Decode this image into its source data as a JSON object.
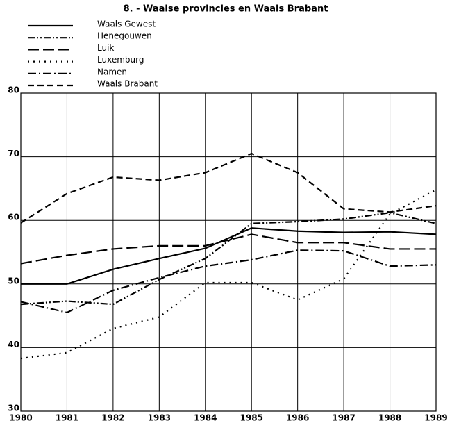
{
  "chart_data": {
    "type": "line",
    "title": "8. - Waalse provincies en Waals Brabant",
    "x": [
      1980,
      1981,
      1982,
      1983,
      1984,
      1985,
      1986,
      1987,
      1988,
      1989
    ],
    "xlim": [
      1980,
      1989
    ],
    "xticks": [
      1980,
      1981,
      1982,
      1983,
      1984,
      1985,
      1986,
      1987,
      1988,
      1989
    ],
    "ylim": [
      30,
      80
    ],
    "yticks": [
      30,
      40,
      50,
      60,
      70,
      80
    ],
    "grid": true,
    "legend": "top-left",
    "series": [
      {
        "name": "Waals Gewest",
        "color": "#000000",
        "style": "solid",
        "values": [
          50,
          50,
          52.3,
          54,
          55.6,
          58.8,
          58.3,
          58.1,
          58.2,
          57.8
        ]
      },
      {
        "name": "Henegouwen",
        "color": "#000000",
        "style": "dash-dot-dot",
        "values": [
          46.8,
          47.3,
          46.8,
          50.7,
          54,
          59.5,
          59.8,
          60.2,
          61.2,
          59.5
        ]
      },
      {
        "name": "Luik",
        "color": "#000000",
        "style": "long-dash",
        "values": [
          53.2,
          54.5,
          55.5,
          56,
          56,
          57.8,
          56.5,
          56.5,
          55.5,
          55.5
        ]
      },
      {
        "name": "Luxemburg",
        "color": "#000000",
        "style": "dotted",
        "values": [
          38.3,
          39.2,
          43,
          44.8,
          50.2,
          50.2,
          47.5,
          50.8,
          61,
          64.8
        ]
      },
      {
        "name": "Namen",
        "color": "#000000",
        "style": "dash-dot",
        "values": [
          47.2,
          45.5,
          49,
          51,
          52.8,
          53.8,
          55.3,
          55.2,
          52.8,
          53
        ]
      },
      {
        "name": "Waals Brabant",
        "color": "#000000",
        "style": "dashed",
        "values": [
          59.6,
          64.2,
          66.8,
          66.3,
          67.5,
          70.5,
          67.5,
          61.8,
          61.3,
          62.3
        ]
      }
    ]
  }
}
